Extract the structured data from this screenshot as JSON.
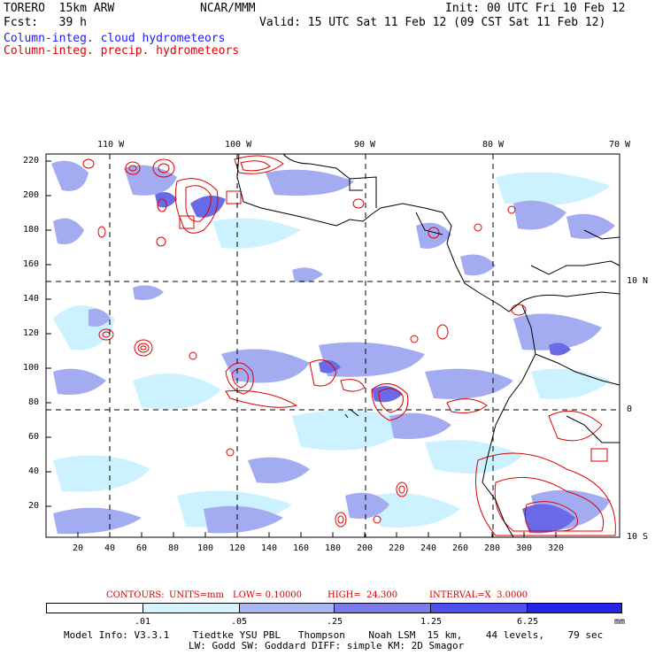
{
  "header": {
    "model": "TORERO  15km ARW",
    "org": "NCAR/MMM",
    "init": "Init: 00 UTC Fri 10 Feb 12",
    "fcst": "Fcst:   39 h",
    "valid": "Valid: 15 UTC Sat 11 Feb 12 (09 CST Sat 11 Feb 12)",
    "field1": "Column-integ. cloud hydrometeors",
    "field2": "Column-integ. precip. hydrometeors"
  },
  "axes": {
    "top_lon_labels": [
      "110 W",
      "100 W",
      "90 W",
      "80 W",
      "70 W"
    ],
    "right_lat_labels": [
      "10 N",
      "0",
      "10 S"
    ],
    "left_ticks": [
      "220",
      "200",
      "180",
      "160",
      "140",
      "120",
      "100",
      "80",
      "60",
      "40",
      "20"
    ],
    "bottom_ticks": [
      "20",
      "40",
      "60",
      "80",
      "100",
      "120",
      "140",
      "160",
      "180",
      "200",
      "220",
      "240",
      "260",
      "280",
      "300",
      "320"
    ]
  },
  "contours": {
    "label": "CONTOURS:",
    "units": "UNITS=mm",
    "low": "LOW= 0.10000",
    "high": "HIGH=  24.300",
    "interval": "INTERVAL=X  3.0000"
  },
  "colorbar": {
    "labels": [
      ".01",
      ".05",
      ".25",
      "1.25",
      "6.25",
      "mm"
    ],
    "colors": [
      "#ffffff",
      "#d8f4ff",
      "#aab8f2",
      "#7c7ce8",
      "#4f4fef",
      "#2424e8"
    ]
  },
  "model_info": {
    "line1": "Model Info: V3.3.1    Tiedtke YSU PBL   Thompson    Noah LSM  15 km,    44 levels,    79 sec",
    "line2": "LW: Godd SW: Goddard DIFF: simple KM: 2D Smagor"
  },
  "colors": {
    "cloud_light": "#ccf2ff",
    "cloud_mid": "#a3acf0",
    "cloud_dark": "#6a6ae6",
    "precip_contour": "#e00000",
    "coast": "#000000"
  }
}
